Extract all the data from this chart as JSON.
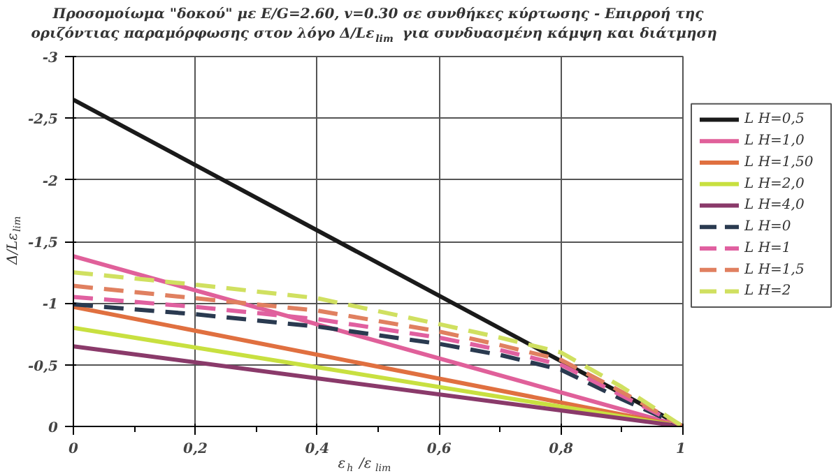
{
  "chart_data": {
    "type": "line",
    "title": "Προσομοίωμα \"δοκού\" με E/G=2.60, v=0.30 σε συνθήκες κύρτωσης - Επιρροή της\nοριζόντιας παραμόρφωσης στον λόγο Δ/Lε$_{lim}$ για συνδυασμένη κάμψη και διάτμηση",
    "xlabel": "ε$_{h}$/ε$_{lim}$",
    "ylabel": "Δ/Lε$_{lim}$",
    "xlim": [
      0,
      1
    ],
    "ylim": [
      0,
      -3
    ],
    "xticks": [
      0,
      {
        "value": 0.2,
        "label": "0,2"
      },
      {
        "value": 0.4,
        "label": "0,4"
      },
      {
        "value": 0.6,
        "label": "0,6"
      },
      {
        "value": 0.8,
        "label": "0,8"
      },
      1
    ],
    "yticks": [
      0,
      {
        "value": -0.5,
        "label": "-0,5"
      },
      -1,
      {
        "value": -1.5,
        "label": "-1,5"
      },
      -2,
      {
        "value": -2.5,
        "label": "-2,5"
      },
      -3
    ],
    "grid": true,
    "legend": "right",
    "marker": "none",
    "series": [
      {
        "name": "L H=0,5",
        "color": "#1a1a1a",
        "line_style": "solid",
        "x": [
          0,
          1
        ],
        "values": [
          -2.65,
          0
        ]
      },
      {
        "name": "L H=1,0",
        "color": "#e0609a",
        "line_style": "solid",
        "x": [
          0,
          1
        ],
        "values": [
          -1.38,
          0
        ]
      },
      {
        "name": "L H=1,50",
        "color": "#e07040",
        "line_style": "solid",
        "x": [
          0,
          1
        ],
        "values": [
          -0.97,
          0
        ]
      },
      {
        "name": "L H=2,0",
        "color": "#c8e040",
        "line_style": "solid",
        "x": [
          0,
          1
        ],
        "values": [
          -0.8,
          0
        ]
      },
      {
        "name": "L H=4,0",
        "color": "#8a3a6a",
        "line_style": "solid",
        "x": [
          0,
          1
        ],
        "values": [
          -0.65,
          0
        ]
      },
      {
        "name": "L H=0",
        "color": "#2a3a50",
        "line_style": "dashed",
        "x": [
          0,
          0.2,
          0.4,
          0.6,
          0.7,
          0.8,
          0.9,
          1
        ],
        "values": [
          -0.99,
          -0.91,
          -0.81,
          -0.67,
          -0.58,
          -0.46,
          -0.22,
          0
        ]
      },
      {
        "name": "L H=1",
        "color": "#e060a0",
        "line_style": "dashed",
        "x": [
          0,
          0.2,
          0.4,
          0.6,
          0.7,
          0.8,
          0.9,
          1
        ],
        "values": [
          -1.05,
          -0.97,
          -0.87,
          -0.72,
          -0.62,
          -0.5,
          -0.25,
          0
        ]
      },
      {
        "name": "L H=1,5",
        "color": "#e08060",
        "line_style": "dashed",
        "x": [
          0,
          0.2,
          0.4,
          0.6,
          0.7,
          0.8,
          0.9,
          1
        ],
        "values": [
          -1.14,
          -1.04,
          -0.94,
          -0.77,
          -0.66,
          -0.54,
          -0.28,
          0
        ]
      },
      {
        "name": "L H=2",
        "color": "#d0e060",
        "line_style": "dashed",
        "x": [
          0,
          0.2,
          0.4,
          0.6,
          0.7,
          0.8,
          0.9,
          1
        ],
        "values": [
          -1.25,
          -1.15,
          -1.04,
          -0.83,
          -0.72,
          -0.6,
          -0.32,
          0
        ]
      }
    ]
  }
}
